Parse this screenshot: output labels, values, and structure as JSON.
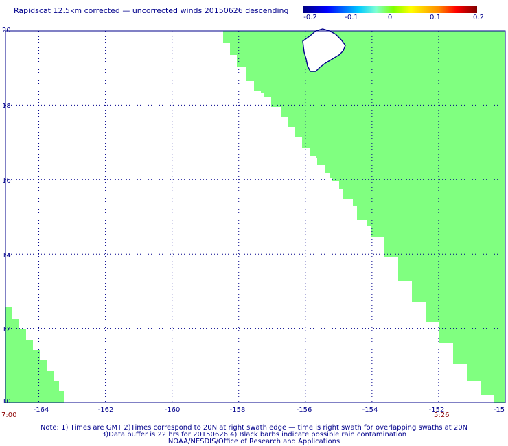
{
  "title": "Rapidscat 12.5km corrected — uncorrected winds 20150626 descending",
  "colorbar": {
    "ticks": [
      "-0.2",
      "-0.1",
      "0",
      "0.1",
      "0.2"
    ]
  },
  "axes": {
    "y_labels": [
      "20",
      "18",
      "16",
      "14",
      "12",
      "10"
    ],
    "x_labels": [
      "-164",
      "-162",
      "-160",
      "-158",
      "-156",
      "-154",
      "-152",
      "-15"
    ]
  },
  "times": {
    "left": "7:00",
    "right": "5:26"
  },
  "notes": {
    "line1": "Note: 1) Times are GMT 2)Times correspond to 20N at right swath edge — time is right swath for overlapping swaths at 20N",
    "line2": "3)Data buffer is 22 hrs for 20150626 4) Black barbs indicate possible rain contamination",
    "line3": "NOAA/NESDIS/Office of Research and Applications"
  },
  "colors": {
    "swath": "#80ff80",
    "grid": "#00008b",
    "island_outline": "#00008b"
  },
  "map_data": {
    "lon_range": [
      -165,
      -150
    ],
    "lat_range": [
      10,
      20
    ],
    "grid_lons": [
      -164,
      -162,
      -160,
      -158,
      -156,
      -154,
      -152
    ],
    "grid_lats": [
      12,
      14,
      16,
      18
    ],
    "swath_value": "0 (difference near zero everywhere)"
  }
}
